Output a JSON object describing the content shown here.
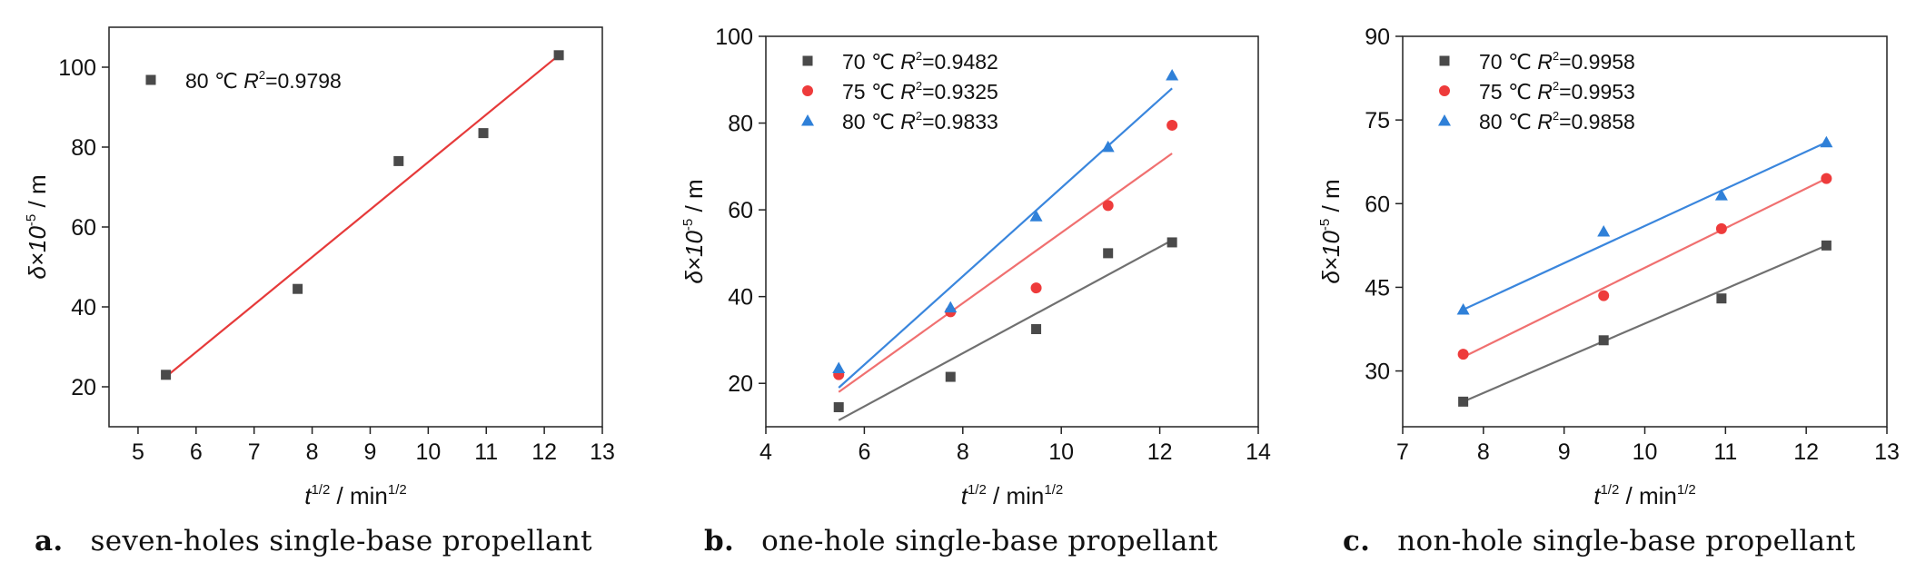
{
  "chart_data": [
    {
      "type": "scatter",
      "panel_label": "a.",
      "caption": "seven-holes single-base propellant",
      "xlabel": "t",
      "xlabel_sup": "1/2",
      "xlabel_mid": " / min",
      "xlabel_sup2": "1/2",
      "ylabel": "δ×10",
      "ylabel_sup": "-5",
      "ylabel_unit": " / m",
      "xlim": [
        4.5,
        13
      ],
      "ylim": [
        10,
        110
      ],
      "xticks": [
        5,
        6,
        7,
        8,
        9,
        10,
        11,
        12,
        13
      ],
      "yticks": [
        20,
        40,
        60,
        80,
        100
      ],
      "legend_position": "top-left",
      "series": [
        {
          "name": "80 ℃",
          "r2_label": "R",
          "r2_sup": "2",
          "r2_value": "=0.9798",
          "color": "#4a4a4a",
          "line_color": "#e63a3a",
          "marker": "square",
          "x": [
            5.48,
            7.75,
            9.49,
            10.95,
            12.25
          ],
          "y": [
            23,
            44.5,
            76.5,
            83.5,
            103
          ],
          "fit": [
            [
              5.48,
              22.5
            ],
            [
              12.25,
              103
            ]
          ]
        }
      ]
    },
    {
      "type": "scatter",
      "panel_label": "b.",
      "caption": "one-hole single-base propellant",
      "xlabel": "t",
      "xlabel_sup": "1/2",
      "xlabel_mid": " / min",
      "xlabel_sup2": "1/2",
      "ylabel": "δ×10",
      "ylabel_sup": "-5",
      "ylabel_unit": " / m",
      "xlim": [
        4,
        14
      ],
      "ylim": [
        10,
        100
      ],
      "xticks": [
        4,
        6,
        8,
        10,
        12,
        14
      ],
      "yticks": [
        20,
        40,
        60,
        80,
        100
      ],
      "legend_position": "top-left",
      "series": [
        {
          "name": "70 ℃",
          "r2_label": "R",
          "r2_sup": "2",
          "r2_value": "=0.9482",
          "color": "#4a4a4a",
          "line_color": "#707070",
          "marker": "square",
          "x": [
            5.48,
            7.75,
            9.49,
            10.95,
            12.25
          ],
          "y": [
            14.5,
            21.5,
            32.5,
            50,
            52.5
          ],
          "fit": [
            [
              5.48,
              11.5
            ],
            [
              12.25,
              53
            ]
          ]
        },
        {
          "name": "75 ℃",
          "r2_label": "R",
          "r2_sup": "2",
          "r2_value": "=0.9325",
          "color": "#ee3b3b",
          "line_color": "#f07070",
          "marker": "circle",
          "x": [
            5.48,
            7.75,
            9.49,
            10.95,
            12.25
          ],
          "y": [
            22,
            36.5,
            42,
            61,
            79.5
          ],
          "fit": [
            [
              5.48,
              18
            ],
            [
              12.25,
              73
            ]
          ]
        },
        {
          "name": "80 ℃",
          "r2_label": "R",
          "r2_sup": "2",
          "r2_value": "=0.9833",
          "color": "#2f80d8",
          "line_color": "#3a86dd",
          "marker": "triangle",
          "x": [
            5.48,
            7.75,
            9.49,
            10.95,
            12.25
          ],
          "y": [
            23.5,
            37.5,
            58.5,
            74.5,
            91
          ],
          "fit": [
            [
              5.48,
              19
            ],
            [
              12.25,
              88
            ]
          ]
        }
      ]
    },
    {
      "type": "scatter",
      "panel_label": "c.",
      "caption": "non-hole single-base propellant",
      "xlabel": "t",
      "xlabel_sup": "1/2",
      "xlabel_mid": " / min",
      "xlabel_sup2": "1/2",
      "ylabel": "δ×10",
      "ylabel_sup": "-5",
      "ylabel_unit": " / m",
      "xlim": [
        7,
        13
      ],
      "ylim": [
        20,
        90
      ],
      "xticks": [
        7,
        8,
        9,
        10,
        11,
        12,
        13
      ],
      "yticks": [
        30,
        45,
        60,
        75,
        90
      ],
      "legend_position": "top-left",
      "series": [
        {
          "name": "70 ℃",
          "r2_label": "R",
          "r2_sup": "2",
          "r2_value": "=0.9958",
          "color": "#4a4a4a",
          "line_color": "#707070",
          "marker": "square",
          "x": [
            7.75,
            9.49,
            10.95,
            12.25
          ],
          "y": [
            24.5,
            35.5,
            43,
            52.5
          ],
          "fit": [
            [
              7.75,
              24.5
            ],
            [
              12.25,
              52.5
            ]
          ]
        },
        {
          "name": "75 ℃",
          "r2_label": "R",
          "r2_sup": "2",
          "r2_value": "=0.9953",
          "color": "#ee3b3b",
          "line_color": "#f07070",
          "marker": "circle",
          "x": [
            7.75,
            9.49,
            10.95,
            12.25
          ],
          "y": [
            33,
            43.5,
            55.5,
            64.5
          ],
          "fit": [
            [
              7.75,
              32.5
            ],
            [
              12.25,
              64.5
            ]
          ]
        },
        {
          "name": "80 ℃",
          "r2_label": "R",
          "r2_sup": "2",
          "r2_value": "=0.9858",
          "color": "#2f80d8",
          "line_color": "#3a86dd",
          "marker": "triangle",
          "x": [
            7.75,
            9.49,
            10.95,
            12.25
          ],
          "y": [
            41,
            55,
            61.5,
            71
          ],
          "fit": [
            [
              7.75,
              41
            ],
            [
              12.25,
              71
            ]
          ]
        }
      ]
    }
  ]
}
